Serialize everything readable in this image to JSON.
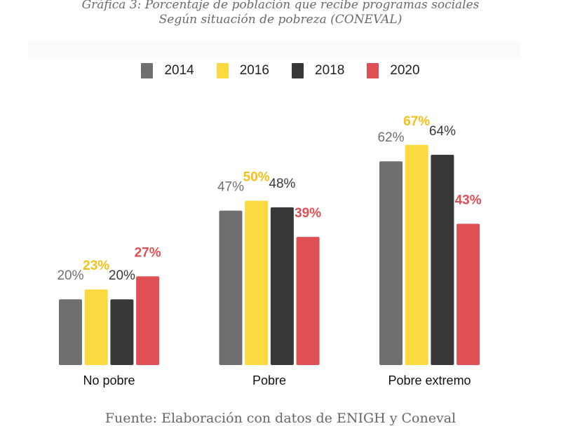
{
  "chart_data": {
    "type": "bar",
    "title": "Gráfica 3: Porcentaje de población que recibe programas sociales",
    "subtitle": "Según situación de pobreza (CONEVAL)",
    "categories": [
      "No pobre",
      "Pobre",
      "Pobre extremo"
    ],
    "series": [
      {
        "name": "2014",
        "color": "#6f6f6f",
        "values": [
          20,
          47,
          62
        ]
      },
      {
        "name": "2016",
        "color": "#fbd940",
        "values": [
          23,
          50,
          67
        ]
      },
      {
        "name": "2018",
        "color": "#383838",
        "values": [
          20,
          48,
          64
        ]
      },
      {
        "name": "2020",
        "color": "#df5055",
        "values": [
          27,
          39,
          43
        ]
      }
    ],
    "label_colors": [
      "#6f6f6f",
      "#f2c21b",
      "#383838",
      "#df4f55"
    ],
    "value_suffix": "%",
    "ylim": [
      0,
      70
    ],
    "grid": false,
    "legend": "top-center",
    "source": "Fuente: Elaboración con datos de ENIGH y Coneval"
  }
}
